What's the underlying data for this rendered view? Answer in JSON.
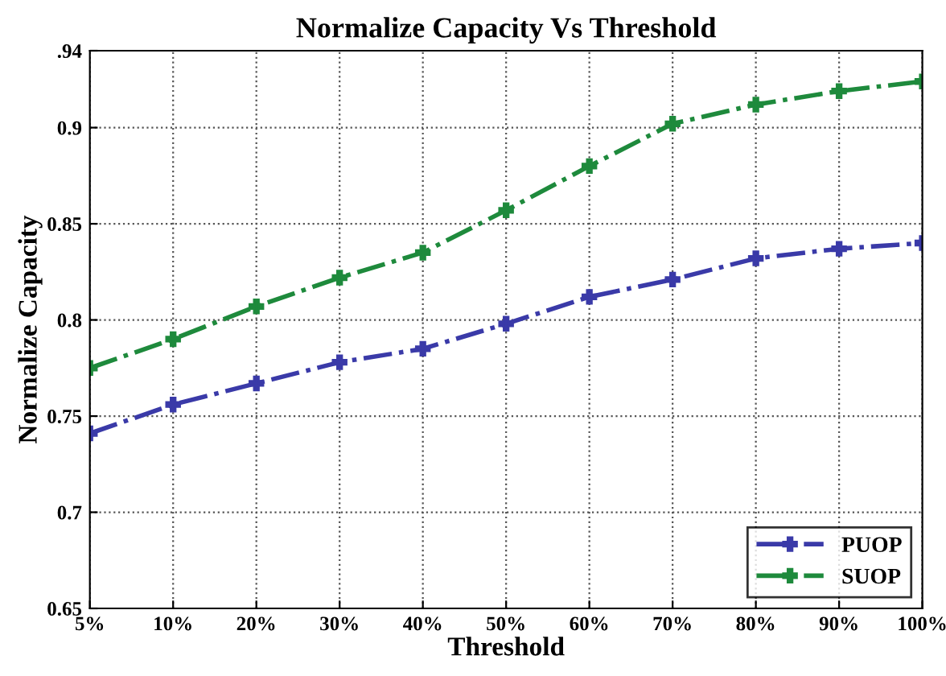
{
  "chart_data": {
    "type": "line",
    "title": "Normalize Capacity Vs Threshold",
    "xlabel": "Threshold",
    "ylabel": "Normalize Capacity",
    "categories": [
      "5%",
      "10%",
      "20%",
      "30%",
      "40%",
      "50%",
      "60%",
      "70%",
      "80%",
      "90%",
      "100%"
    ],
    "series": [
      {
        "name": "PUOP",
        "color": "#3a3aa8",
        "values": [
          0.741,
          0.756,
          0.767,
          0.778,
          0.785,
          0.798,
          0.812,
          0.821,
          0.832,
          0.837,
          0.84
        ]
      },
      {
        "name": "SUOP",
        "color": "#1e8a3c",
        "values": [
          0.775,
          0.79,
          0.807,
          0.822,
          0.835,
          0.857,
          0.88,
          0.902,
          0.912,
          0.919,
          0.924
        ]
      }
    ],
    "ylim": [
      0.65,
      0.94
    ],
    "yticks": [
      0.65,
      0.7,
      0.75,
      0.8,
      0.85,
      0.9,
      {
        "value": 0.94,
        "label": ".94"
      }
    ],
    "grid": true,
    "legend": "bottom right",
    "marker": "cross",
    "line_style": "dashdot"
  }
}
